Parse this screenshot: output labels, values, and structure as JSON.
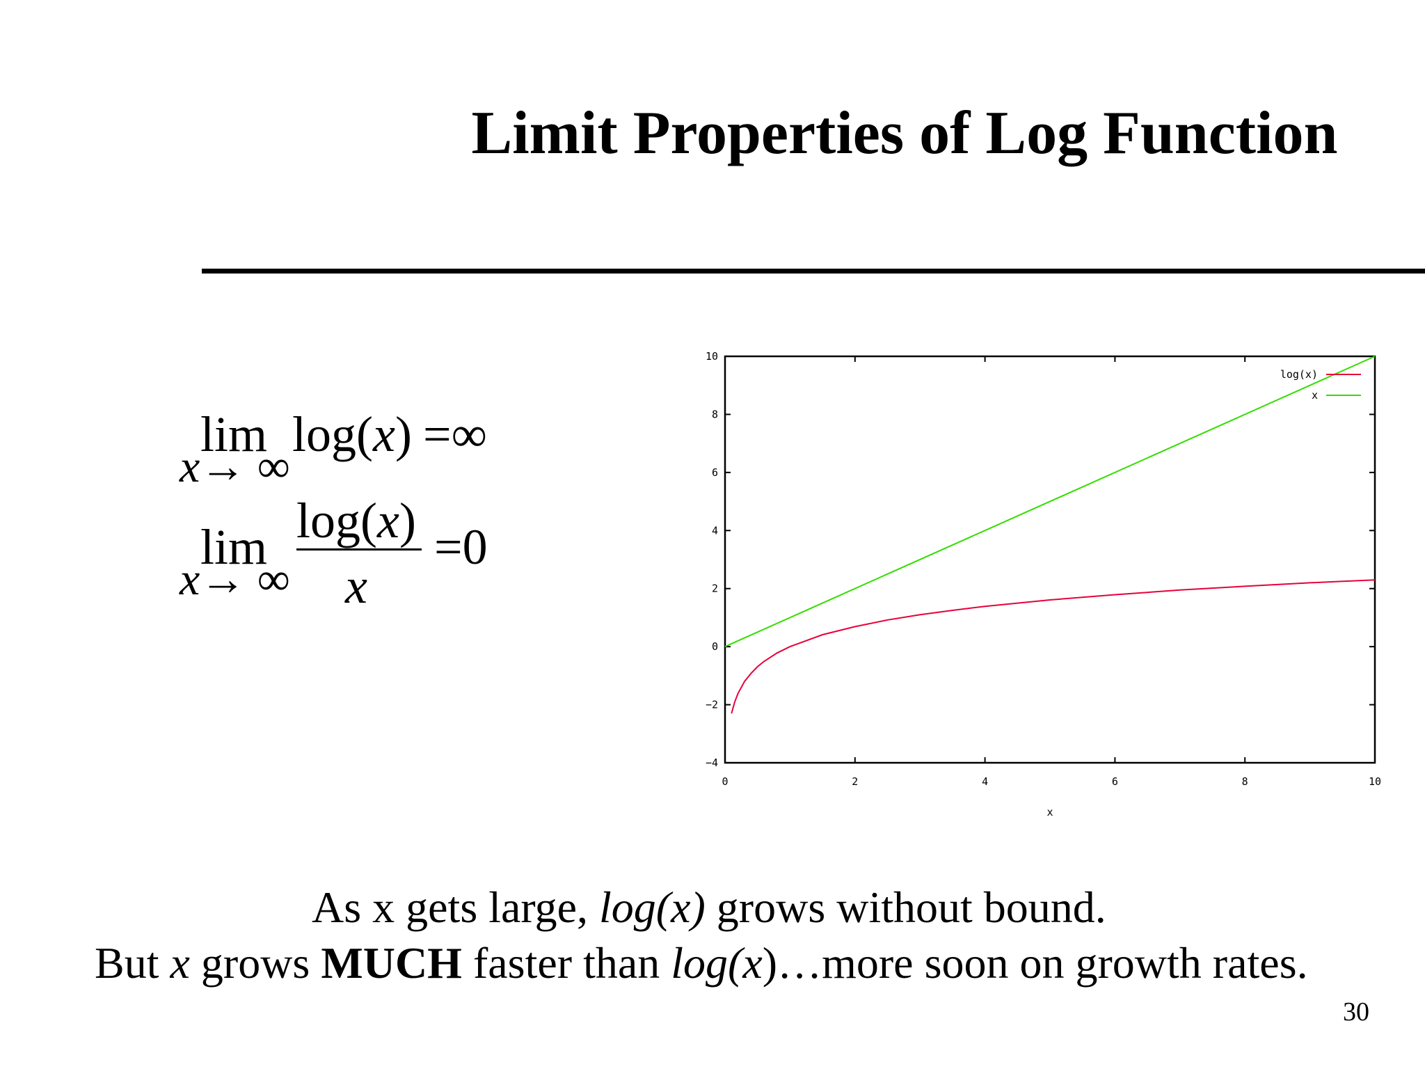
{
  "slide": {
    "title": "Limit Properties of Log Function",
    "page_number": "30"
  },
  "formulas": {
    "lim": "lim",
    "sub_x": "x",
    "sub_arrow": "→ ∞",
    "f1_log": "log(",
    "f1_x": "x",
    "f1_close": ")",
    "f1_eq": "=∞",
    "f2_num_log": "log(",
    "f2_num_x": "x",
    "f2_num_close": ")",
    "f2_den": "x",
    "f2_eq": "=0"
  },
  "caption": {
    "line1_a": "As x gets large, ",
    "line1_b": "log(x)",
    "line1_c": " grows without bound.",
    "line2_a": "But ",
    "line2_b": "x",
    "line2_c": " grows ",
    "line2_d": "MUCH",
    "line2_e": " faster than ",
    "line2_f": "log(",
    "line2_g": "x",
    "line2_h": ")…more soon on growth rates."
  },
  "chart_data": {
    "type": "line",
    "xlabel": "x",
    "ylabel": "",
    "xlim": [
      0,
      10
    ],
    "ylim": [
      -4,
      10
    ],
    "x_ticks": [
      "0",
      "2",
      "4",
      "6",
      "8",
      "10"
    ],
    "y_ticks": [
      "-4",
      "-2",
      "0",
      "2",
      "4",
      "6",
      "8",
      "10"
    ],
    "grid": false,
    "legend": "top-right",
    "series": [
      {
        "name": "log(x)",
        "color": "#e8003a",
        "x": [
          0.1,
          0.15,
          0.2,
          0.3,
          0.4,
          0.5,
          0.6,
          0.8,
          1,
          1.5,
          2,
          2.5,
          3,
          3.5,
          4,
          5,
          6,
          7,
          8,
          9,
          10
        ],
        "y": [
          -2.3,
          -1.9,
          -1.61,
          -1.2,
          -0.92,
          -0.69,
          -0.51,
          -0.22,
          0,
          0.41,
          0.69,
          0.92,
          1.1,
          1.25,
          1.39,
          1.61,
          1.79,
          1.95,
          2.08,
          2.2,
          2.3
        ]
      },
      {
        "name": "x",
        "color": "#33dd00",
        "x": [
          0,
          10
        ],
        "y": [
          0,
          10
        ]
      }
    ]
  }
}
